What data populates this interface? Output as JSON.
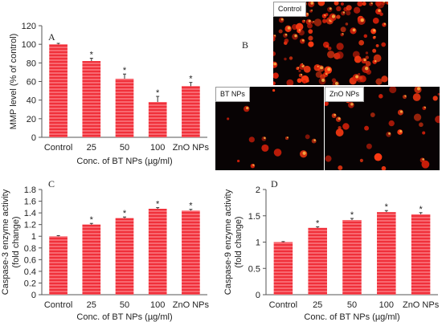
{
  "panel_b": {
    "label": "B",
    "images": [
      {
        "tag": "Control"
      },
      {
        "tag": "BT NPs"
      },
      {
        "tag": "ZnO NPs"
      }
    ]
  },
  "colors": {
    "bar_fill": "#f0303a",
    "bar_stripe": "#ff9fa6",
    "axis": "#555555",
    "star": "#444444"
  },
  "chart_data": [
    {
      "id": "A",
      "type": "bar",
      "panel_label": "A",
      "categories": [
        "Control",
        "25",
        "50",
        "100",
        "ZnO NPs"
      ],
      "values": [
        100,
        82,
        63,
        38,
        55
      ],
      "errors": [
        1,
        3,
        5,
        6,
        4
      ],
      "significant": [
        false,
        true,
        true,
        true,
        true
      ],
      "ylabel": "MMP level (% of control)",
      "xlabel": "Conc. of BT NPs (µg/ml)",
      "ylim": [
        0,
        120
      ],
      "yticks": [
        "0",
        "20",
        "40",
        "60",
        "80",
        "100",
        "120"
      ],
      "grid": false
    },
    {
      "id": "C",
      "type": "bar",
      "panel_label": "C",
      "categories": [
        "Control",
        "25",
        "50",
        "100",
        "ZnO NPs"
      ],
      "values": [
        1.0,
        1.2,
        1.31,
        1.47,
        1.44
      ],
      "errors": [
        0.01,
        0.02,
        0.02,
        0.02,
        0.02
      ],
      "significant": [
        false,
        true,
        true,
        true,
        true
      ],
      "ylabel": "Caspase-3 enzyme activity (fold change)",
      "ylabel_lines": [
        "Caspase-3 enzyme activity",
        "(fold change)"
      ],
      "xlabel": "Conc. of BT NPs (µg/ml)",
      "ylim": [
        0,
        1.8
      ],
      "yticks": [
        "0",
        "0.2",
        "0.4",
        "0.6",
        "0.8",
        "1",
        "1.2",
        "1.4",
        "1.6",
        "1.8"
      ],
      "grid": false
    },
    {
      "id": "D",
      "type": "bar",
      "panel_label": "D",
      "categories": [
        "Control",
        "25",
        "50",
        "100",
        "ZnO NPs"
      ],
      "values": [
        1.0,
        1.27,
        1.42,
        1.57,
        1.53
      ],
      "errors": [
        0.01,
        0.02,
        0.03,
        0.03,
        0.03
      ],
      "significant": [
        false,
        true,
        true,
        true,
        true
      ],
      "ylabel": "Caspase-9 enzyme activity (fold change)",
      "ylabel_lines": [
        "Caspase-9 enzyme activity",
        "(fold change)"
      ],
      "xlabel": "Conc. of BT NPs (µg/ml)",
      "ylim": [
        0,
        2
      ],
      "yticks": [
        "0",
        "0.5",
        "1",
        "1.5",
        "2"
      ],
      "grid": false
    }
  ]
}
